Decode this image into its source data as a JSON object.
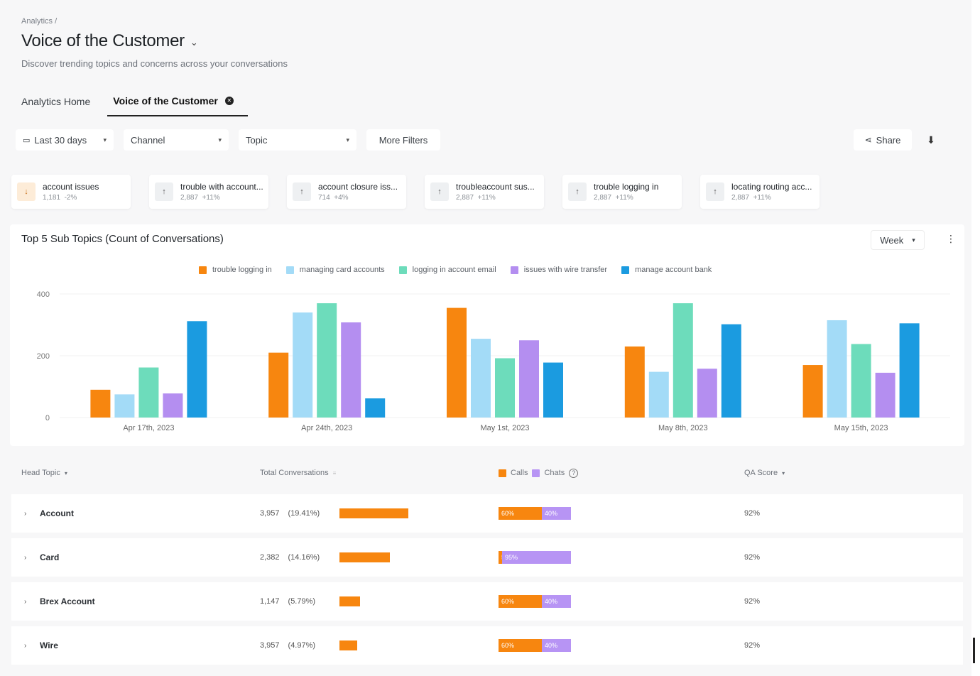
{
  "breadcrumb": "Analytics /",
  "page_title": "Voice of the Customer",
  "subtitle": "Discover trending topics and concerns across your conversations",
  "tabs": [
    {
      "label": "Analytics Home"
    },
    {
      "label": "Voice of the Customer"
    }
  ],
  "filters": {
    "date": "Last 30 days",
    "channel": "Channel",
    "topic": "Topic",
    "more": "More Filters",
    "share": "Share"
  },
  "topic_cards": [
    {
      "name": "account issues",
      "count": "1,181",
      "change": "-2%",
      "direction": "down"
    },
    {
      "name": "trouble with account...",
      "count": "2,887",
      "change": "+11%",
      "direction": "up"
    },
    {
      "name": "account closure iss...",
      "count": "714",
      "change": "+4%",
      "direction": "up"
    },
    {
      "name": "troubleaccount sus...",
      "count": "2,887",
      "change": "+11%",
      "direction": "up"
    },
    {
      "name": "trouble logging in",
      "count": "2,887",
      "change": "+11%",
      "direction": "up"
    },
    {
      "name": "locating routing acc...",
      "count": "2,887",
      "change": "+11%",
      "direction": "up"
    }
  ],
  "chart_panel": {
    "title": "Top 5 Sub Topics (Count of Conversations)",
    "period": "Week"
  },
  "chart_data": {
    "type": "bar",
    "title": "Top 5 Sub Topics (Count of Conversations)",
    "categories": [
      "Apr 17th, 2023",
      "Apr 24th, 2023",
      "May 1st, 2023",
      "May 8th, 2023",
      "May 15th, 2023"
    ],
    "yticks": [
      0,
      200,
      400
    ],
    "ylim": [
      0,
      400
    ],
    "grid": true,
    "legend": "top-center",
    "series": [
      {
        "name": "trouble logging in",
        "color": "#f7860f",
        "values": [
          90,
          210,
          355,
          230,
          170
        ]
      },
      {
        "name": "managing card accounts",
        "color": "#a3dbf7",
        "values": [
          75,
          340,
          255,
          148,
          315
        ]
      },
      {
        "name": "logging in account email",
        "color": "#6ddcbb",
        "values": [
          162,
          370,
          192,
          370,
          238
        ]
      },
      {
        "name": "issues with wire transfer",
        "color": "#b48ef0",
        "values": [
          78,
          308,
          250,
          158,
          145
        ]
      },
      {
        "name": "manage account bank",
        "color": "#1b9be0",
        "values": [
          312,
          62,
          178,
          302,
          305
        ]
      }
    ]
  },
  "table": {
    "headers": {
      "head_topic": "Head Topic",
      "total": "Total Conversations",
      "calls": "Calls",
      "chats": "Chats",
      "qa": "QA Score"
    },
    "colors": {
      "calls": "#f7860f",
      "chats": "#b794f4",
      "bar": "#f7860f"
    },
    "rows": [
      {
        "name": "Account",
        "count": "3,957",
        "pct": "(19.41%)",
        "share": 0.1941,
        "calls": "60%",
        "chats": "40%",
        "calls_frac": 0.6,
        "qa": "92%"
      },
      {
        "name": "Card",
        "count": "2,382",
        "pct": "(14.16%)",
        "share": 0.1416,
        "calls": "5%",
        "chats": "95%",
        "calls_frac": 0.05,
        "qa": "92%"
      },
      {
        "name": "Brex Account",
        "count": "1,147",
        "pct": "(5.79%)",
        "share": 0.0579,
        "calls": "60%",
        "chats": "40%",
        "calls_frac": 0.6,
        "qa": "92%"
      },
      {
        "name": "Wire",
        "count": "3,957",
        "pct": "(4.97%)",
        "share": 0.0497,
        "calls": "60%",
        "chats": "40%",
        "calls_frac": 0.6,
        "qa": "92%"
      }
    ]
  }
}
